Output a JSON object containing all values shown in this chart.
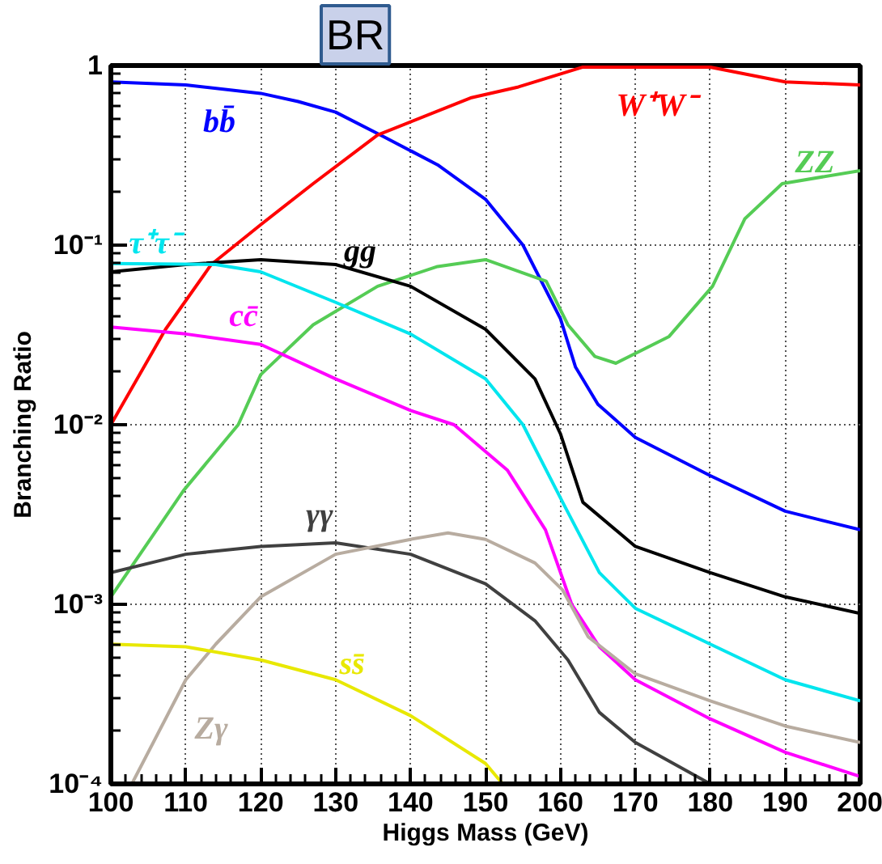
{
  "chart_data": {
    "type": "line",
    "xlabel": "Higgs Mass (GeV)",
    "ylabel": "Branching Ratio",
    "log": "y",
    "grid": true,
    "legend": false,
    "marker": "none",
    "line_style": "solid",
    "xlim": [
      100,
      200
    ],
    "xticks": [
      100,
      110,
      120,
      130,
      140,
      150,
      160,
      170,
      180,
      190,
      200
    ],
    "ylim": [
      0.0001,
      1
    ],
    "yticks": [
      {
        "value": 0.0001,
        "label": "10⁻⁴"
      },
      {
        "value": 0.001,
        "label": "10⁻³"
      },
      {
        "value": 0.01,
        "label": "10⁻²"
      },
      {
        "value": 0.1,
        "label": "10⁻¹"
      },
      1
    ],
    "series": [
      {
        "name": "bb̄",
        "color": "#0000ff",
        "x": [
          100,
          110,
          120,
          125,
          130,
          136,
          143.6,
          150,
          155,
          160,
          162,
          165,
          170,
          180,
          190,
          200
        ],
        "values": [
          0.81,
          0.78,
          0.7,
          0.63,
          0.55,
          0.41,
          0.28,
          0.18,
          0.1,
          0.039,
          0.021,
          0.013,
          0.0085,
          0.0052,
          0.0033,
          0.0026
        ]
      },
      {
        "name": "W⁺W⁻",
        "color": "#ff0000",
        "x": [
          100,
          107.3,
          113.4,
          120,
          127,
          135.6,
          148,
          154.4,
          163,
          180,
          190,
          200
        ],
        "values": [
          0.01,
          0.034,
          0.078,
          0.13,
          0.22,
          0.41,
          0.66,
          0.76,
          0.98,
          0.98,
          0.81,
          0.78
        ]
      },
      {
        "name": "ZZ",
        "color": "#55cc55",
        "x": [
          100,
          109.7,
          117,
          120,
          127,
          135.6,
          143.6,
          150,
          158.1,
          161,
          164.6,
          167.4,
          174.5,
          180.3,
          184.6,
          189.6,
          200
        ],
        "values": [
          0.0011,
          0.0043,
          0.01,
          0.019,
          0.036,
          0.059,
          0.076,
          0.083,
          0.063,
          0.036,
          0.024,
          0.022,
          0.031,
          0.059,
          0.14,
          0.22,
          0.26
        ]
      },
      {
        "name": "gg",
        "color": "#000000",
        "x": [
          100,
          110,
          120,
          130,
          140,
          150,
          156.6,
          160,
          163,
          170,
          180,
          190,
          200
        ],
        "values": [
          0.071,
          0.078,
          0.083,
          0.078,
          0.059,
          0.034,
          0.018,
          0.0089,
          0.0037,
          0.0021,
          0.0015,
          0.0011,
          0.00089
        ]
      },
      {
        "name": "τ⁺τ⁻",
        "color": "#00e5ee",
        "x": [
          100,
          114,
          120,
          130,
          140,
          150,
          155,
          160.3,
          165.2,
          170,
          180,
          190,
          200
        ],
        "values": [
          0.079,
          0.078,
          0.071,
          0.048,
          0.032,
          0.018,
          0.01,
          0.0037,
          0.0015,
          0.00095,
          0.0006,
          0.00038,
          0.00029
        ]
      },
      {
        "name": "cc̄",
        "color": "#ff00ff",
        "x": [
          100,
          110,
          120,
          130,
          140,
          145.8,
          152.9,
          158,
          161.5,
          165.2,
          170,
          180,
          190,
          200
        ],
        "values": [
          0.035,
          0.032,
          0.028,
          0.018,
          0.012,
          0.01,
          0.0056,
          0.0026,
          0.001,
          0.00058,
          0.00038,
          0.00023,
          0.00015,
          0.00011
        ]
      },
      {
        "name": "γγ",
        "color": "#404040",
        "x": [
          100,
          110,
          120,
          130,
          140,
          150,
          156.6,
          161,
          165.2,
          170,
          180
        ],
        "values": [
          0.0015,
          0.0019,
          0.0021,
          0.0022,
          0.0019,
          0.0013,
          0.00081,
          0.00049,
          0.00025,
          0.00017,
          0.0001
        ]
      },
      {
        "name": "Zγ",
        "color": "#b8aca0",
        "x": [
          102.8,
          110,
          114,
          120,
          130,
          140,
          145,
          150,
          156.6,
          160.3,
          163.7,
          170,
          180,
          190,
          200
        ],
        "values": [
          0.0001,
          0.00038,
          0.0006,
          0.0011,
          0.0019,
          0.0023,
          0.0025,
          0.0023,
          0.0017,
          0.0012,
          0.00066,
          0.00041,
          0.00029,
          0.00021,
          0.00017
        ]
      },
      {
        "name": "ss̄",
        "color": "#e8e800",
        "x": [
          100,
          110,
          120,
          130,
          140,
          150,
          152.3
        ],
        "values": [
          0.0006,
          0.00058,
          0.00049,
          0.00038,
          0.00024,
          0.00013,
          0.0001
        ]
      }
    ],
    "annotations": [
      "BR"
    ]
  }
}
